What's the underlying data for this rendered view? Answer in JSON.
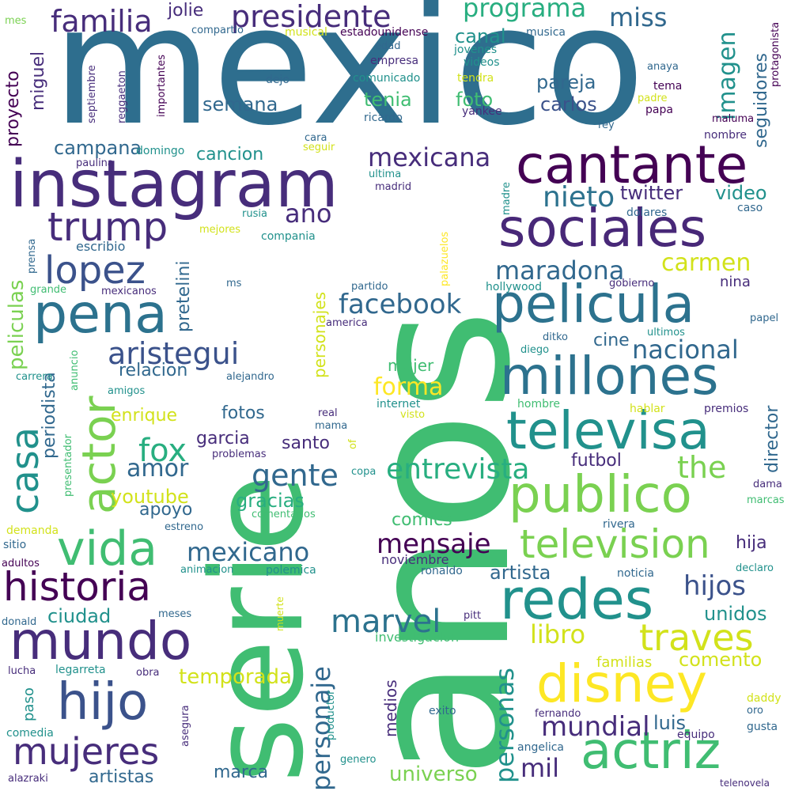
{
  "palette": {
    "c1": "#2e6e8e",
    "c2": "#40bd72",
    "c3": "#440154",
    "c4": "#472d7b",
    "c5": "#3b528b",
    "c6": "#21918c",
    "c7": "#7ad151",
    "c8": "#d2e21b",
    "c9": "#fde725",
    "c10": "#2c728e",
    "c11": "#28ae80",
    "c12": "#5ec962",
    "c13": "#31688e",
    "c14": "#482878",
    "c15": "#1f9e89",
    "c16": "#35b779"
  },
  "words": [
    "mexico",
    "anos",
    "serie",
    "instagram",
    "cantante",
    "sociales",
    "pelicula",
    "millones",
    "televisa",
    "publico",
    "redes",
    "television",
    "actriz",
    "disney",
    "pena",
    "mundo",
    "hijo",
    "vida",
    "historia",
    "actor",
    "casa",
    "mujeres",
    "trump",
    "lopez",
    "presidente",
    "familia",
    "mexicana",
    "aristegui",
    "facebook",
    "maradona",
    "carmen",
    "nacional",
    "fox",
    "traves",
    "marvel",
    "entrevista",
    "gente",
    "the",
    "mensaje",
    "mexicano",
    "mundial",
    "personaje",
    "personas",
    "hijos",
    "libro",
    "forma",
    "mil",
    "nieto",
    "ano",
    "programa",
    "miss",
    "imagen",
    "seguidores",
    "canal",
    "pareja",
    "carlos",
    "semana",
    "campana",
    "cancion",
    "video",
    "twitter",
    "peliculas",
    "pretelini",
    "periodista",
    "relacion",
    "cine",
    "mujer",
    "garcia",
    "amor",
    "gracias",
    "youtube",
    "apoyo",
    "santo",
    "enrique",
    "fotos",
    "comics",
    "temporada",
    "ciudad",
    "artista",
    "unidos",
    "comento",
    "futbol",
    "hija",
    "director",
    "universo",
    "medios",
    "artistas",
    "marca",
    "luis",
    "foto",
    "tenia",
    "miguel",
    "proyecto",
    "jolie",
    "musica",
    "familias",
    "noviembre",
    "ronaldo",
    "internet",
    "visto",
    "investigacion",
    "luis",
    "septiembre",
    "reggaeton",
    "importantes",
    "compartio",
    "musical",
    "estadounidense",
    "edad",
    "empresa",
    "jovenes",
    "videos",
    "comunicado",
    "tendra",
    "dejo",
    "ricardo",
    "yankee",
    "tema",
    "padre",
    "papa",
    "anaya",
    "maluma",
    "protagonista",
    "rey",
    "nombre",
    "cara",
    "seguir",
    "domingo",
    "paulina",
    "ultima",
    "madrid",
    "madre",
    "rusia",
    "mejores",
    "compania",
    "escribio",
    "dolares",
    "caso",
    "prensa",
    "personajes",
    "palazuelos",
    "partido",
    "hollywood",
    "gobierno",
    "nina",
    "grande",
    "mexicanos",
    "ms",
    "america",
    "papel",
    "ultimos",
    "ditko",
    "diego",
    "alejandro",
    "amigos",
    "carrera",
    "anuncio",
    "real",
    "mama",
    "of",
    "hombre",
    "hablar",
    "premios",
    "problemas",
    "presentador",
    "copa",
    "comentarios",
    "estreno",
    "dama",
    "marcas",
    "rivera",
    "demanda",
    "sitio",
    "adultos",
    "animacion",
    "polemica",
    "noticia",
    "declaro",
    "muerte",
    "meses",
    "pitt",
    "donald",
    "lucha",
    "legarreta",
    "obra",
    "paso",
    "asegura",
    "productor",
    "exito",
    "fernando",
    "daddy",
    "oro",
    "gusta",
    "comedia",
    "angelica",
    "equipo",
    "genero",
    "alazraki",
    "telenovela"
  ]
}
